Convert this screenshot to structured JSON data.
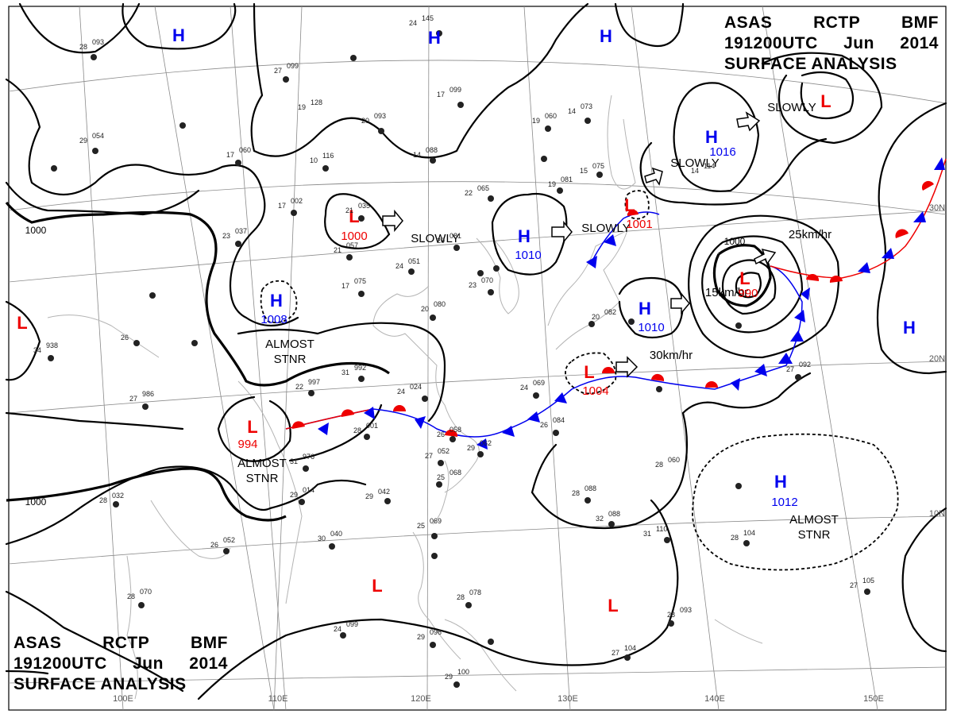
{
  "header_top": {
    "agency": "ASAS",
    "center": "RCTP",
    "office": "BMF",
    "valid_time": "191200UTC",
    "month": "Jun",
    "year": "2014",
    "product": "SURFACE ANALYSIS"
  },
  "header_bottom": {
    "agency": "ASAS",
    "center": "RCTP",
    "office": "BMF",
    "valid_time": "191200UTC",
    "month": "Jun",
    "year": "2014",
    "product": "SURFACE ANALYSIS"
  },
  "colors": {
    "high": "#0000ee",
    "low": "#ee0000",
    "isobar": "#000000",
    "grid": "#8a8a8a",
    "coast": "#bdbdbd",
    "front_cold": "#0000ee",
    "front_warm": "#ee0000"
  },
  "longitude_labels": [
    "100E",
    "110E",
    "120E",
    "130E",
    "140E",
    "150E"
  ],
  "latitude_labels": [
    "30N",
    "20N",
    "10N"
  ],
  "isobar_labels": [
    "1000",
    "1000",
    "1000"
  ],
  "pressure_centers": [
    {
      "type": "H",
      "value": "",
      "motion": ""
    },
    {
      "type": "H",
      "value": "",
      "motion": ""
    },
    {
      "type": "H",
      "value": "",
      "motion": ""
    },
    {
      "type": "L",
      "value": "1000",
      "motion": "SLOWLY"
    },
    {
      "type": "H",
      "value": "1010",
      "motion": "SLOWLY"
    },
    {
      "type": "L",
      "value": "1001",
      "motion": "SLOWLY"
    },
    {
      "type": "H",
      "value": "1016",
      "motion": "SLOWLY"
    },
    {
      "type": "L",
      "value": "",
      "motion": "SLOWLY"
    },
    {
      "type": "H",
      "value": "1008",
      "motion": "ALMOST STNR"
    },
    {
      "type": "L",
      "value": "",
      "motion": ""
    },
    {
      "type": "L",
      "value": "994",
      "motion": "ALMOST STNR"
    },
    {
      "type": "L",
      "value": "1004",
      "motion": "30km/hr"
    },
    {
      "type": "H",
      "value": "1010",
      "motion": "15km/hr"
    },
    {
      "type": "L",
      "value": "990",
      "motion": "25km/hr"
    },
    {
      "type": "H",
      "value": "",
      "motion": ""
    },
    {
      "type": "H",
      "value": "1012",
      "motion": "ALMOST STNR"
    },
    {
      "type": "L",
      "value": "",
      "motion": ""
    },
    {
      "type": "L",
      "value": "",
      "motion": ""
    }
  ],
  "station_plots": [
    {
      "temp": "28",
      "pres": "093"
    },
    {
      "temp": "27",
      "pres": "099"
    },
    {
      "temp": "24",
      "pres": "145"
    },
    {
      "temp": "19",
      "pres": "128"
    },
    {
      "temp": "20",
      "pres": "093"
    },
    {
      "temp": "17",
      "pres": "099"
    },
    {
      "temp": "19",
      "pres": "060"
    },
    {
      "temp": "14",
      "pres": "073"
    },
    {
      "temp": "29",
      "pres": "054"
    },
    {
      "temp": "17",
      "pres": "060"
    },
    {
      "temp": "10",
      "pres": "116"
    },
    {
      "temp": "14",
      "pres": "088"
    },
    {
      "temp": "22",
      "pres": "065"
    },
    {
      "temp": "19",
      "pres": "081"
    },
    {
      "temp": "15",
      "pres": "075"
    },
    {
      "temp": "14",
      "pres": "114"
    },
    {
      "temp": "17",
      "pres": "002"
    },
    {
      "temp": "21",
      "pres": "035"
    },
    {
      "temp": "23",
      "pres": "037"
    },
    {
      "temp": "21",
      "pres": "057"
    },
    {
      "temp": "24",
      "pres": "051"
    },
    {
      "temp": "20",
      "pres": "081"
    },
    {
      "temp": "17",
      "pres": "075"
    },
    {
      "temp": "20",
      "pres": "080"
    },
    {
      "temp": "23",
      "pres": "070"
    },
    {
      "temp": "20",
      "pres": "082"
    },
    {
      "temp": "34",
      "pres": "938"
    },
    {
      "temp": "26",
      "pres": ""
    },
    {
      "temp": "31",
      "pres": "992"
    },
    {
      "temp": "22",
      "pres": "997"
    },
    {
      "temp": "24",
      "pres": "024"
    },
    {
      "temp": "24",
      "pres": "069"
    },
    {
      "temp": "26",
      "pres": "084"
    },
    {
      "temp": "27",
      "pres": "986"
    },
    {
      "temp": "28",
      "pres": "001"
    },
    {
      "temp": "26",
      "pres": "058"
    },
    {
      "temp": "29",
      "pres": "062"
    },
    {
      "temp": "31",
      "pres": "976"
    },
    {
      "temp": "27",
      "pres": "052"
    },
    {
      "temp": "25",
      "pres": "068"
    },
    {
      "temp": "29",
      "pres": "014"
    },
    {
      "temp": "29",
      "pres": "042"
    },
    {
      "temp": "28",
      "pres": "032"
    },
    {
      "temp": "26",
      "pres": "052"
    },
    {
      "temp": "30",
      "pres": "040"
    },
    {
      "temp": "25",
      "pres": "069"
    },
    {
      "temp": "28",
      "pres": "088"
    },
    {
      "temp": "32",
      "pres": "088"
    },
    {
      "temp": "31",
      "pres": "110"
    },
    {
      "temp": "28",
      "pres": "060"
    },
    {
      "temp": "28",
      "pres": "104"
    },
    {
      "temp": "28",
      "pres": "070"
    },
    {
      "temp": "28",
      "pres": "078"
    },
    {
      "temp": "29",
      "pres": "096"
    },
    {
      "temp": "29",
      "pres": "100"
    },
    {
      "temp": "28",
      "pres": "093"
    },
    {
      "temp": "27",
      "pres": "104"
    },
    {
      "temp": "27",
      "pres": "105"
    },
    {
      "temp": "27",
      "pres": "092"
    },
    {
      "temp": "24",
      "pres": "099"
    }
  ]
}
